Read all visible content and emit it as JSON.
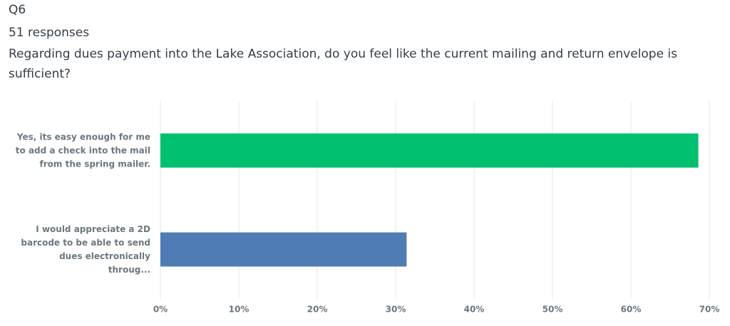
{
  "chart_data": {
    "type": "bar",
    "orientation": "horizontal",
    "question_number": "Q6",
    "responses": "51 responses",
    "title": "Regarding dues payment into the Lake Association, do you feel like the current mailing and return envelope is sufficient?",
    "categories": [
      "Yes, its easy enough for me to add a check into the mail from the spring mailer.",
      "I would appreciate a 2D barcode to be able to send dues electronically throug..."
    ],
    "series": [
      {
        "name": "Responses",
        "colors": [
          "#00bf6f",
          "#507cb6"
        ],
        "values": [
          68.6,
          31.4
        ]
      }
    ],
    "xlim": [
      0,
      70
    ],
    "xticks": [
      {
        "value": 0,
        "label": "0%"
      },
      {
        "value": 10,
        "label": "10%"
      },
      {
        "value": 20,
        "label": "20%"
      },
      {
        "value": 30,
        "label": "30%"
      },
      {
        "value": 40,
        "label": "40%"
      },
      {
        "value": 50,
        "label": "50%"
      },
      {
        "value": 60,
        "label": "60%"
      },
      {
        "value": 70,
        "label": "70%"
      }
    ],
    "grid": true
  }
}
